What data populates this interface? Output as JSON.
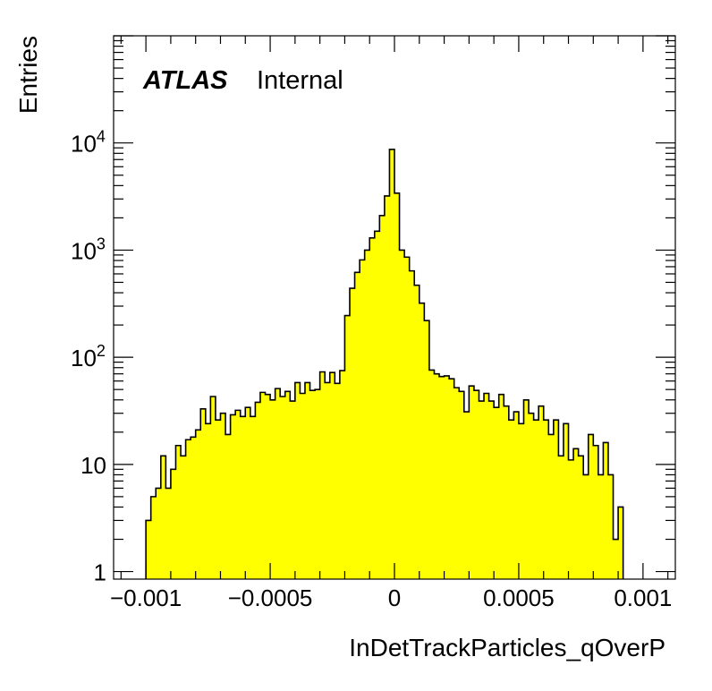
{
  "chart_data": {
    "type": "bar",
    "histogram_style": "filled-step",
    "fill_color": "#ffff00",
    "line_color": "#000000",
    "frame_color": "#000000",
    "xlabel": "InDetTrackParticles_qOverP",
    "ylabel": "Entries",
    "label_bold": "ATLAS",
    "label_status": "Internal",
    "xlim": [
      -0.00113,
      0.00113
    ],
    "ylim": [
      0.85,
      100000
    ],
    "yscale": "log",
    "grid": false,
    "x_ticks": [
      {
        "value": -0.001,
        "label": "−0.001"
      },
      {
        "value": -0.0005,
        "label": "−0.0005"
      },
      {
        "value": 0,
        "label": "0"
      },
      {
        "value": 0.0005,
        "label": "0.0005"
      },
      {
        "value": 0.001,
        "label": "0.001"
      }
    ],
    "y_ticks": [
      {
        "value": 1,
        "base": "1",
        "exp": ""
      },
      {
        "value": 10,
        "base": "10",
        "exp": ""
      },
      {
        "value": 100,
        "base": "10",
        "exp": "2"
      },
      {
        "value": 1000,
        "base": "10",
        "exp": "3"
      },
      {
        "value": 10000,
        "base": "10",
        "exp": "4"
      }
    ],
    "bin_edges_start": -0.001,
    "bin_width": 2e-05,
    "values": [
      3,
      5,
      6,
      12,
      6,
      9,
      15,
      12,
      17,
      18,
      21,
      33,
      24,
      43,
      26,
      30,
      19,
      29,
      32,
      28,
      34,
      28,
      38,
      47,
      45,
      40,
      51,
      43,
      48,
      39,
      58,
      46,
      58,
      49,
      50,
      73,
      58,
      72,
      57,
      75,
      245,
      440,
      620,
      810,
      1000,
      1300,
      1500,
      2100,
      3200,
      8700,
      3400,
      1000,
      860,
      640,
      470,
      320,
      220,
      76,
      70,
      66,
      67,
      63,
      52,
      48,
      31,
      54,
      49,
      39,
      46,
      39,
      34,
      45,
      35,
      26,
      31,
      24,
      40,
      30,
      26,
      35,
      26,
      19,
      26,
      12,
      24,
      11,
      14,
      12,
      8,
      19,
      15,
      8,
      16,
      8,
      2,
      4
    ]
  }
}
